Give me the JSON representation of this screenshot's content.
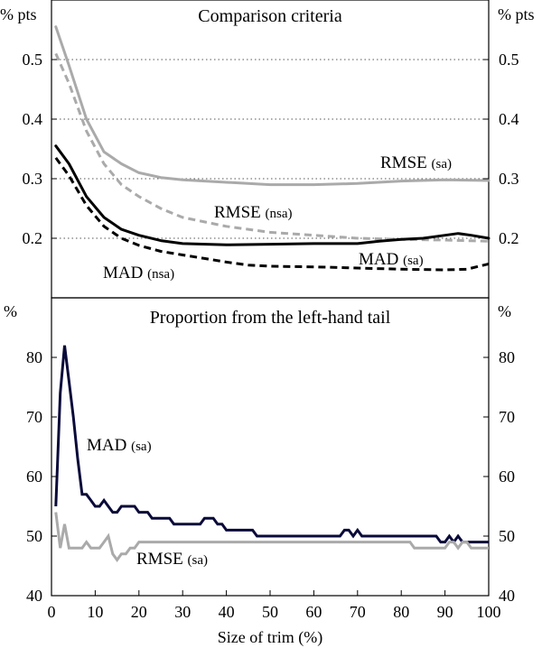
{
  "chart_data": [
    {
      "type": "line",
      "title": "Comparison criteria",
      "ylabel_left": "% pts",
      "ylabel_right": "% pts",
      "ylim": [
        0.1,
        0.6
      ],
      "yticks": [
        0.2,
        0.3,
        0.4,
        0.5
      ],
      "ytick_labels": [
        "0.2",
        "0.3",
        "0.4",
        "0.5"
      ],
      "grid": "horizontal-dotted",
      "series": [
        {
          "name": "RMSE (sa)",
          "label_main": "RMSE",
          "label_sub": "(sa)",
          "color": "#aaaaaa",
          "style": "solid",
          "x": [
            1,
            4,
            8,
            12,
            16,
            20,
            25,
            30,
            40,
            50,
            60,
            70,
            80,
            90,
            100
          ],
          "y": [
            0.555,
            0.49,
            0.4,
            0.345,
            0.325,
            0.31,
            0.302,
            0.298,
            0.294,
            0.29,
            0.29,
            0.292,
            0.296,
            0.298,
            0.297
          ]
        },
        {
          "name": "RMSE (nsa)",
          "label_main": "RMSE",
          "label_sub": "(nsa)",
          "color": "#aaaaaa",
          "style": "dashed",
          "x": [
            1,
            4,
            8,
            12,
            16,
            20,
            25,
            30,
            40,
            50,
            60,
            70,
            80,
            90,
            100
          ],
          "y": [
            0.51,
            0.46,
            0.38,
            0.325,
            0.29,
            0.27,
            0.25,
            0.235,
            0.22,
            0.21,
            0.205,
            0.2,
            0.198,
            0.197,
            0.195
          ]
        },
        {
          "name": "MAD (sa)",
          "label_main": "MAD",
          "label_sub": "(sa)",
          "color": "#000000",
          "style": "solid",
          "x": [
            1,
            4,
            8,
            12,
            16,
            20,
            25,
            30,
            40,
            50,
            60,
            70,
            75,
            80,
            85,
            90,
            93,
            96,
            100
          ],
          "y": [
            0.355,
            0.325,
            0.27,
            0.235,
            0.215,
            0.205,
            0.196,
            0.191,
            0.189,
            0.19,
            0.191,
            0.191,
            0.195,
            0.198,
            0.2,
            0.205,
            0.208,
            0.205,
            0.2
          ]
        },
        {
          "name": "MAD (nsa)",
          "label_main": "MAD",
          "label_sub": "(nsa)",
          "color": "#000000",
          "style": "dashed",
          "x": [
            1,
            4,
            8,
            12,
            16,
            20,
            25,
            30,
            35,
            40,
            45,
            50,
            60,
            70,
            80,
            90,
            95,
            100
          ],
          "y": [
            0.335,
            0.305,
            0.255,
            0.22,
            0.2,
            0.188,
            0.178,
            0.172,
            0.166,
            0.16,
            0.155,
            0.153,
            0.152,
            0.15,
            0.148,
            0.147,
            0.148,
            0.157
          ]
        }
      ]
    },
    {
      "type": "line",
      "title": "Proportion from the left-hand tail",
      "ylabel_left": "%",
      "ylabel_right": "%",
      "ylim": [
        40,
        90
      ],
      "yticks": [
        40,
        50,
        60,
        70,
        80
      ],
      "ytick_labels": [
        "40",
        "50",
        "60",
        "70",
        "80"
      ],
      "xlabel": "Size of trim (%)",
      "xlim": [
        0,
        100
      ],
      "xticks": [
        0,
        10,
        20,
        30,
        40,
        50,
        60,
        70,
        80,
        90,
        100
      ],
      "xtick_labels": [
        "0",
        "10",
        "20",
        "30",
        "40",
        "50",
        "60",
        "70",
        "80",
        "90",
        "100"
      ],
      "series": [
        {
          "name": "MAD (sa)",
          "label_main": "MAD",
          "label_sub": "(sa)",
          "color": "#0a0a3a",
          "style": "solid",
          "x": [
            1,
            2,
            3,
            4,
            5,
            6,
            7,
            8,
            9,
            10,
            11,
            12,
            13,
            14,
            15,
            16,
            17,
            18,
            19,
            20,
            21,
            22,
            23,
            24,
            25,
            26,
            27,
            28,
            29,
            30,
            31,
            32,
            33,
            34,
            35,
            36,
            37,
            38,
            39,
            40,
            41,
            42,
            43,
            44,
            45,
            46,
            47,
            48,
            49,
            50,
            51,
            52,
            53,
            54,
            55,
            56,
            57,
            58,
            59,
            60,
            61,
            62,
            63,
            64,
            65,
            66,
            67,
            68,
            69,
            70,
            71,
            72,
            73,
            74,
            75,
            76,
            77,
            78,
            79,
            80,
            81,
            82,
            83,
            84,
            85,
            86,
            87,
            88,
            89,
            90,
            91,
            92,
            93,
            94,
            95,
            96,
            97,
            98,
            99,
            100
          ],
          "y": [
            55,
            74,
            82,
            76,
            70,
            63,
            57,
            57,
            56,
            55,
            55,
            56,
            55,
            54,
            54,
            55,
            55,
            55,
            55,
            54,
            54,
            54,
            53,
            53,
            53,
            53,
            53,
            52,
            52,
            52,
            52,
            52,
            52,
            52,
            53,
            53,
            53,
            52,
            52,
            51,
            51,
            51,
            51,
            51,
            51,
            51,
            50,
            50,
            50,
            50,
            50,
            50,
            50,
            50,
            50,
            50,
            50,
            50,
            50,
            50,
            50,
            50,
            50,
            50,
            50,
            50,
            51,
            51,
            50,
            51,
            50,
            50,
            50,
            50,
            50,
            50,
            50,
            50,
            50,
            50,
            50,
            50,
            50,
            50,
            50,
            50,
            50,
            50,
            49,
            49,
            50,
            49,
            50,
            49,
            49,
            49,
            49,
            49,
            49,
            49
          ]
        },
        {
          "name": "RMSE (sa)",
          "label_main": "RMSE",
          "label_sub": "(sa)",
          "color": "#aaaaaa",
          "style": "solid",
          "x": [
            1,
            2,
            3,
            4,
            5,
            6,
            7,
            8,
            9,
            10,
            11,
            12,
            13,
            14,
            15,
            16,
            17,
            18,
            19,
            20,
            21,
            22,
            23,
            24,
            25,
            26,
            27,
            28,
            29,
            30,
            35,
            40,
            45,
            50,
            55,
            60,
            65,
            70,
            75,
            80,
            82,
            83,
            84,
            85,
            86,
            87,
            88,
            89,
            90,
            91,
            92,
            93,
            94,
            95,
            96,
            97,
            98,
            99,
            100
          ],
          "y": [
            54,
            48,
            52,
            48,
            48,
            48,
            48,
            49,
            48,
            48,
            48,
            49,
            50,
            47,
            46,
            47,
            47,
            48,
            48,
            49,
            49,
            49,
            49,
            49,
            49,
            49,
            49,
            49,
            49,
            49,
            49,
            49,
            49,
            49,
            49,
            49,
            49,
            49,
            49,
            49,
            49,
            48,
            48,
            48,
            48,
            48,
            48,
            48,
            48,
            49,
            49,
            48,
            49,
            49,
            48,
            48,
            48,
            48,
            48
          ]
        }
      ]
    }
  ],
  "annotations": {
    "top_rmse_sa": {
      "main": "RMSE",
      "sub": "(sa)"
    },
    "top_rmse_nsa": {
      "main": "RMSE",
      "sub": "(nsa)"
    },
    "top_mad_sa": {
      "main": "MAD",
      "sub": "(sa)"
    },
    "top_mad_nsa": {
      "main": "MAD",
      "sub": "(nsa)"
    },
    "bottom_mad_sa": {
      "main": "MAD",
      "sub": "(sa)"
    },
    "bottom_rmse_sa": {
      "main": "RMSE",
      "sub": "(sa)"
    }
  }
}
